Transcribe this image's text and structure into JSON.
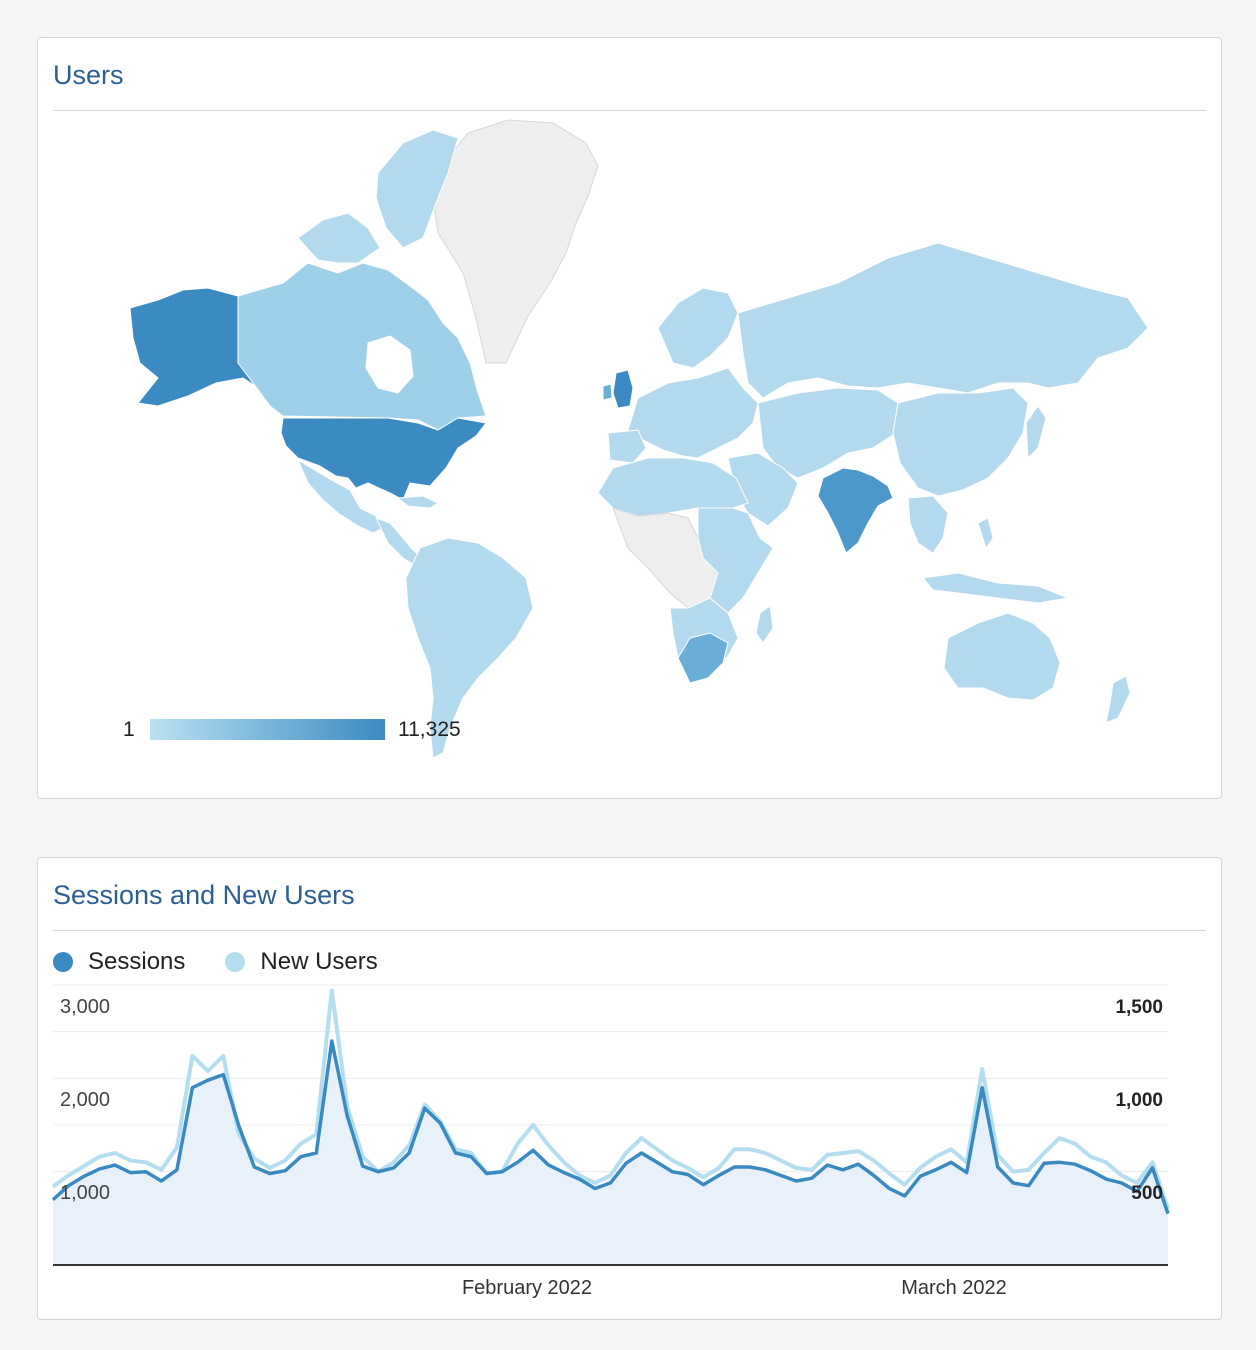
{
  "users_card": {
    "title": "Users",
    "legend_min": "1",
    "legend_max": "11,325",
    "colors": {
      "high": "#3b8bc2",
      "mid": "#6aaed8",
      "low": "#b2d9ed",
      "none": "#eeeeee"
    }
  },
  "sessions_card": {
    "title": "Sessions and New Users",
    "legend": [
      {
        "name": "Sessions",
        "color": "#3a8ac2"
      },
      {
        "name": "New Users",
        "color": "#b3def0"
      }
    ]
  },
  "chart_data": {
    "type": "line",
    "x_tick_labels": [
      "February 2022",
      "March 2022"
    ],
    "y_left": {
      "ticks": [
        "3,000",
        "2,000",
        "1,000"
      ],
      "range": [
        0,
        3000
      ]
    },
    "y_right": {
      "ticks": [
        "1,500",
        "1,000",
        "500"
      ],
      "range": [
        0,
        1500
      ]
    },
    "series": [
      {
        "name": "Sessions",
        "axis": "left",
        "color": "#3a8ac2",
        "values": [
          700,
          850,
          950,
          1030,
          1070,
          990,
          1000,
          900,
          1020,
          1900,
          1980,
          2040,
          1490,
          1050,
          980,
          1010,
          1160,
          1200,
          2400,
          1600,
          1060,
          1000,
          1040,
          1200,
          1680,
          1520,
          1200,
          1160,
          980,
          1000,
          1100,
          1230,
          1070,
          990,
          920,
          820,
          880,
          1090,
          1200,
          1100,
          1000,
          970,
          860,
          960,
          1050,
          1050,
          1020,
          960,
          900,
          930,
          1070,
          1020,
          1080,
          960,
          820,
          740,
          950,
          1020,
          1100,
          990,
          1900,
          1050,
          880,
          850,
          1090,
          1100,
          1080,
          1010,
          920,
          880,
          790,
          1040,
          550
        ]
      },
      {
        "name": "New Users",
        "axis": "right",
        "color": "#b3def0",
        "values": [
          420,
          480,
          530,
          580,
          600,
          560,
          550,
          510,
          630,
          1120,
          1040,
          1120,
          700,
          570,
          520,
          560,
          650,
          700,
          1470,
          850,
          580,
          500,
          550,
          640,
          860,
          770,
          620,
          600,
          490,
          500,
          650,
          750,
          640,
          550,
          480,
          440,
          480,
          600,
          680,
          620,
          560,
          520,
          470,
          520,
          620,
          620,
          600,
          560,
          520,
          510,
          590,
          600,
          610,
          560,
          490,
          430,
          520,
          580,
          620,
          550,
          1050,
          590,
          500,
          510,
          600,
          680,
          650,
          580,
          550,
          480,
          440,
          550,
          300
        ]
      }
    ]
  }
}
